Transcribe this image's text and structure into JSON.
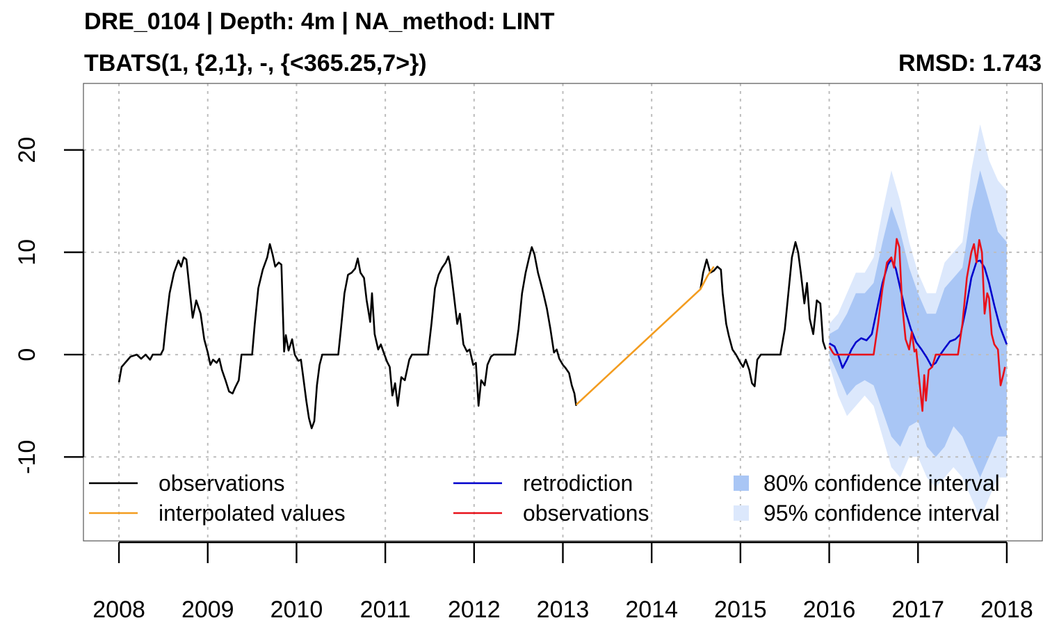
{
  "header": {
    "title": "DRE_0104 | Depth: 4m | NA_method: LINT",
    "model": "TBATS(1, {2,1}, -, {<365.25,7>})",
    "rmsd": "RMSD: 1.743"
  },
  "colors": {
    "observations": "#000000",
    "interpolated": "#f39c1f",
    "retrodiction": "#0000cc",
    "observations_test": "#e8111a",
    "ci80": "#a9c6f5",
    "ci95": "#dce8fc",
    "grid": "#bdbdbd"
  },
  "chart_data": {
    "type": "line",
    "title": "DRE_0104 | Depth: 4m | NA_method: LINT",
    "subtitle": "TBATS(1, {2,1}, -, {<365.25,7>})",
    "annotation": "RMSD: 1.743",
    "xlabel": "",
    "ylabel": "",
    "xlim": [
      2007.6,
      2018.4
    ],
    "ylim": [
      -18.2,
      26.5
    ],
    "x_ticks": [
      2008,
      2009,
      2010,
      2011,
      2012,
      2013,
      2014,
      2015,
      2016,
      2017,
      2018
    ],
    "x_tick_labels": [
      "2008",
      "2009",
      "2010",
      "2011",
      "2012",
      "2013",
      "2014",
      "2015",
      "2016",
      "2017",
      "2018"
    ],
    "y_ticks": [
      -10,
      0,
      10,
      20
    ],
    "y_tick_labels": [
      "-10",
      "0",
      "10",
      "20"
    ],
    "grid": true,
    "legend_position": "bottom",
    "legend": [
      {
        "label": "observations",
        "kind": "line",
        "color": "#000000"
      },
      {
        "label": "interpolated values",
        "kind": "line",
        "color": "#f39c1f"
      },
      {
        "label": "retrodiction",
        "kind": "line",
        "color": "#0000cc"
      },
      {
        "label": "observations",
        "kind": "line",
        "color": "#e8111a"
      },
      {
        "label": "80% confidence interval",
        "kind": "box",
        "color": "#a9c6f5"
      },
      {
        "label": "95% confidence interval",
        "kind": "box",
        "color": "#dce8fc"
      }
    ],
    "series": [
      {
        "name": "observations",
        "color": "#000000",
        "points": [
          [
            2008.0,
            -2.7
          ],
          [
            2008.03,
            -1.2
          ],
          [
            2008.08,
            -0.7
          ],
          [
            2008.13,
            -0.2
          ],
          [
            2008.2,
            0
          ],
          [
            2008.25,
            -0.4
          ],
          [
            2008.3,
            0
          ],
          [
            2008.35,
            -0.5
          ],
          [
            2008.38,
            0
          ],
          [
            2008.47,
            0
          ],
          [
            2008.5,
            0.5
          ],
          [
            2008.53,
            3
          ],
          [
            2008.57,
            6
          ],
          [
            2008.62,
            8
          ],
          [
            2008.67,
            9.2
          ],
          [
            2008.7,
            8.6
          ],
          [
            2008.73,
            9.5
          ],
          [
            2008.76,
            9.3
          ],
          [
            2008.8,
            6
          ],
          [
            2008.83,
            3.6
          ],
          [
            2008.87,
            5.3
          ],
          [
            2008.92,
            4
          ],
          [
            2008.96,
            1.5
          ],
          [
            2009.0,
            0.2
          ],
          [
            2009.03,
            -1
          ],
          [
            2009.06,
            -0.5
          ],
          [
            2009.1,
            -0.8
          ],
          [
            2009.13,
            -0.4
          ],
          [
            2009.16,
            -1.5
          ],
          [
            2009.2,
            -2.5
          ],
          [
            2009.24,
            -3.6
          ],
          [
            2009.28,
            -3.8
          ],
          [
            2009.31,
            -3.2
          ],
          [
            2009.35,
            -2.5
          ],
          [
            2009.38,
            0
          ],
          [
            2009.5,
            0
          ],
          [
            2009.53,
            3
          ],
          [
            2009.57,
            6.5
          ],
          [
            2009.62,
            8.3
          ],
          [
            2009.67,
            9.5
          ],
          [
            2009.7,
            10.8
          ],
          [
            2009.73,
            9.8
          ],
          [
            2009.76,
            8.6
          ],
          [
            2009.8,
            9
          ],
          [
            2009.83,
            8.8
          ],
          [
            2009.86,
            0.3
          ],
          [
            2009.88,
            1.9
          ],
          [
            2009.91,
            0.4
          ],
          [
            2009.95,
            1.5
          ],
          [
            2009.98,
            0
          ],
          [
            2010.02,
            -0.6
          ],
          [
            2010.05,
            -0.5
          ],
          [
            2010.08,
            -2.5
          ],
          [
            2010.11,
            -4.5
          ],
          [
            2010.14,
            -6.2
          ],
          [
            2010.17,
            -7.2
          ],
          [
            2010.2,
            -6.5
          ],
          [
            2010.23,
            -3
          ],
          [
            2010.26,
            -1
          ],
          [
            2010.29,
            0
          ],
          [
            2010.47,
            0
          ],
          [
            2010.5,
            2.5
          ],
          [
            2010.54,
            6
          ],
          [
            2010.58,
            7.8
          ],
          [
            2010.62,
            8
          ],
          [
            2010.66,
            8.4
          ],
          [
            2010.69,
            9.4
          ],
          [
            2010.72,
            8
          ],
          [
            2010.76,
            7.5
          ],
          [
            2010.79,
            5.3
          ],
          [
            2010.83,
            3.2
          ],
          [
            2010.85,
            6
          ],
          [
            2010.88,
            2
          ],
          [
            2010.92,
            0.5
          ],
          [
            2010.95,
            1
          ],
          [
            2010.99,
            0
          ],
          [
            2011.02,
            -0.7
          ],
          [
            2011.05,
            -1.2
          ],
          [
            2011.08,
            -4
          ],
          [
            2011.11,
            -2.8
          ],
          [
            2011.14,
            -5
          ],
          [
            2011.18,
            -2.2
          ],
          [
            2011.22,
            -2.5
          ],
          [
            2011.27,
            -0.5
          ],
          [
            2011.3,
            0
          ],
          [
            2011.48,
            0
          ],
          [
            2011.52,
            3
          ],
          [
            2011.56,
            6.5
          ],
          [
            2011.6,
            7.8
          ],
          [
            2011.64,
            8.5
          ],
          [
            2011.68,
            9
          ],
          [
            2011.71,
            9.6
          ],
          [
            2011.73,
            8.8
          ],
          [
            2011.77,
            6
          ],
          [
            2011.81,
            3
          ],
          [
            2011.84,
            4
          ],
          [
            2011.88,
            1
          ],
          [
            2011.92,
            0.3
          ],
          [
            2011.95,
            0.5
          ],
          [
            2011.99,
            -1
          ],
          [
            2012.02,
            -0.8
          ],
          [
            2012.05,
            -5
          ],
          [
            2012.08,
            -2.5
          ],
          [
            2012.12,
            -3
          ],
          [
            2012.15,
            -1
          ],
          [
            2012.19,
            -0.2
          ],
          [
            2012.22,
            0
          ],
          [
            2012.46,
            0
          ],
          [
            2012.5,
            2.5
          ],
          [
            2012.54,
            6
          ],
          [
            2012.58,
            8
          ],
          [
            2012.62,
            9.5
          ],
          [
            2012.65,
            10.5
          ],
          [
            2012.68,
            9.8
          ],
          [
            2012.72,
            8
          ],
          [
            2012.75,
            7
          ],
          [
            2012.78,
            6
          ],
          [
            2012.82,
            4.5
          ],
          [
            2012.86,
            2.5
          ],
          [
            2012.9,
            0.2
          ],
          [
            2012.93,
            0.5
          ],
          [
            2012.96,
            -0.4
          ],
          [
            2013.0,
            -1
          ],
          [
            2013.03,
            -1.3
          ],
          [
            2013.07,
            -1.8
          ],
          [
            2013.1,
            -3
          ],
          [
            2013.13,
            -3.8
          ],
          [
            2013.15,
            -5
          ]
        ]
      },
      {
        "name": "observations (continued)",
        "color": "#000000",
        "points": [
          [
            2014.55,
            6.4
          ],
          [
            2014.58,
            8
          ],
          [
            2014.62,
            9.3
          ],
          [
            2014.66,
            8
          ],
          [
            2014.7,
            8.2
          ],
          [
            2014.74,
            8.6
          ],
          [
            2014.78,
            8.3
          ],
          [
            2014.8,
            6
          ],
          [
            2014.84,
            3
          ],
          [
            2014.87,
            1.8
          ],
          [
            2014.91,
            0.5
          ],
          [
            2014.95,
            0
          ],
          [
            2015.0,
            -0.8
          ],
          [
            2015.03,
            -1.2
          ],
          [
            2015.06,
            -0.5
          ],
          [
            2015.1,
            -1.5
          ],
          [
            2015.13,
            -2.8
          ],
          [
            2015.16,
            -3.1
          ],
          [
            2015.19,
            -0.5
          ],
          [
            2015.23,
            0
          ],
          [
            2015.45,
            0
          ],
          [
            2015.5,
            2.5
          ],
          [
            2015.54,
            6
          ],
          [
            2015.58,
            9.5
          ],
          [
            2015.62,
            11
          ],
          [
            2015.65,
            10
          ],
          [
            2015.68,
            8
          ],
          [
            2015.72,
            5
          ],
          [
            2015.75,
            7
          ],
          [
            2015.78,
            3.5
          ],
          [
            2015.82,
            2
          ],
          [
            2015.86,
            5.3
          ],
          [
            2015.9,
            5
          ],
          [
            2015.93,
            1.3
          ],
          [
            2015.96,
            0.5
          ]
        ]
      },
      {
        "name": "interpolated values",
        "color": "#f39c1f",
        "points": [
          [
            2013.15,
            -4.9
          ],
          [
            2014.55,
            6.4
          ],
          [
            2014.63,
            7.7
          ],
          [
            2014.7,
            8.6
          ]
        ]
      },
      {
        "name": "retrodiction",
        "color": "#0000cc",
        "points": [
          [
            2016.0,
            1.1
          ],
          [
            2016.06,
            0.8
          ],
          [
            2016.1,
            0
          ],
          [
            2016.15,
            -1.3
          ],
          [
            2016.2,
            -0.5
          ],
          [
            2016.25,
            0.5
          ],
          [
            2016.3,
            1.2
          ],
          [
            2016.36,
            1.6
          ],
          [
            2016.42,
            1.4
          ],
          [
            2016.48,
            2
          ],
          [
            2016.54,
            4.5
          ],
          [
            2016.6,
            7
          ],
          [
            2016.66,
            8.8
          ],
          [
            2016.7,
            9.3
          ],
          [
            2016.75,
            8.4
          ],
          [
            2016.8,
            6.5
          ],
          [
            2016.86,
            4.2
          ],
          [
            2016.92,
            2.5
          ],
          [
            2016.98,
            1.2
          ],
          [
            2017.04,
            0.5
          ],
          [
            2017.1,
            -0.3
          ],
          [
            2017.15,
            -1.1
          ],
          [
            2017.2,
            -0.8
          ],
          [
            2017.25,
            0
          ],
          [
            2017.3,
            0.6
          ],
          [
            2017.36,
            1.3
          ],
          [
            2017.42,
            1.5
          ],
          [
            2017.48,
            2
          ],
          [
            2017.54,
            4.5
          ],
          [
            2017.6,
            7.5
          ],
          [
            2017.66,
            9.1
          ],
          [
            2017.7,
            9.2
          ],
          [
            2017.75,
            8.5
          ],
          [
            2017.8,
            7
          ],
          [
            2017.86,
            4.8
          ],
          [
            2017.92,
            2.8
          ],
          [
            2018.0,
            1
          ]
        ]
      },
      {
        "name": "observations",
        "color": "#e8111a",
        "points": [
          [
            2016.0,
            0.8
          ],
          [
            2016.04,
            0.2
          ],
          [
            2016.06,
            0
          ],
          [
            2016.5,
            0
          ],
          [
            2016.55,
            3
          ],
          [
            2016.6,
            6.5
          ],
          [
            2016.65,
            9
          ],
          [
            2016.7,
            9.5
          ],
          [
            2016.73,
            8.5
          ],
          [
            2016.76,
            11.3
          ],
          [
            2016.79,
            10.5
          ],
          [
            2016.82,
            5
          ],
          [
            2016.86,
            1.5
          ],
          [
            2016.9,
            0.5
          ],
          [
            2016.93,
            2.2
          ],
          [
            2016.96,
            0.3
          ],
          [
            2016.98,
            0.5
          ],
          [
            2017.02,
            -3
          ],
          [
            2017.05,
            -5.5
          ],
          [
            2017.07,
            -2
          ],
          [
            2017.09,
            -4.5
          ],
          [
            2017.12,
            -1.5
          ],
          [
            2017.16,
            -1.2
          ],
          [
            2017.2,
            0
          ],
          [
            2017.45,
            0
          ],
          [
            2017.5,
            3
          ],
          [
            2017.55,
            7.5
          ],
          [
            2017.6,
            10
          ],
          [
            2017.63,
            10.8
          ],
          [
            2017.66,
            9
          ],
          [
            2017.69,
            11.2
          ],
          [
            2017.72,
            10
          ],
          [
            2017.75,
            4
          ],
          [
            2017.78,
            6
          ],
          [
            2017.8,
            5.5
          ],
          [
            2017.83,
            2
          ],
          [
            2017.86,
            1
          ],
          [
            2017.9,
            0.5
          ],
          [
            2017.93,
            -3
          ],
          [
            2017.96,
            -2
          ],
          [
            2017.98,
            -1.2
          ]
        ]
      }
    ],
    "bands": [
      {
        "name": "95% confidence interval",
        "color": "#dce8fc",
        "x": [
          2016.0,
          2016.1,
          2016.2,
          2016.3,
          2016.4,
          2016.5,
          2016.6,
          2016.7,
          2016.8,
          2016.9,
          2017.0,
          2017.1,
          2017.2,
          2017.3,
          2017.4,
          2017.5,
          2017.6,
          2017.7,
          2017.8,
          2017.9,
          2018.0
        ],
        "upper": [
          3,
          4,
          6,
          8,
          8,
          9.5,
          14,
          18,
          15,
          11,
          8,
          6,
          6,
          9,
          10,
          11,
          18,
          22.5,
          19,
          17,
          16
        ],
        "lower": [
          -1,
          -4,
          -6,
          -5,
          -4,
          -5,
          -8,
          -11,
          -12,
          -10,
          -10,
          -12,
          -13,
          -12,
          -11,
          -12,
          -14,
          -16,
          -14,
          -12,
          -12
        ]
      },
      {
        "name": "80% confidence interval",
        "color": "#a9c6f5",
        "x": [
          2016.0,
          2016.1,
          2016.2,
          2016.3,
          2016.4,
          2016.5,
          2016.6,
          2016.7,
          2016.8,
          2016.9,
          2017.0,
          2017.1,
          2017.2,
          2017.3,
          2017.4,
          2017.5,
          2017.6,
          2017.7,
          2017.8,
          2017.9,
          2018.0
        ],
        "upper": [
          2,
          2.5,
          4,
          6,
          6,
          7,
          11,
          14.5,
          12,
          8.5,
          6,
          4,
          4,
          6.5,
          7.5,
          8.5,
          14,
          18,
          15,
          12,
          11
        ],
        "lower": [
          0,
          -2,
          -4,
          -3,
          -2.5,
          -3,
          -5.5,
          -8,
          -9,
          -7,
          -6.5,
          -9,
          -10,
          -9,
          -7,
          -8,
          -10,
          -12,
          -10,
          -8,
          -8
        ]
      }
    ]
  }
}
